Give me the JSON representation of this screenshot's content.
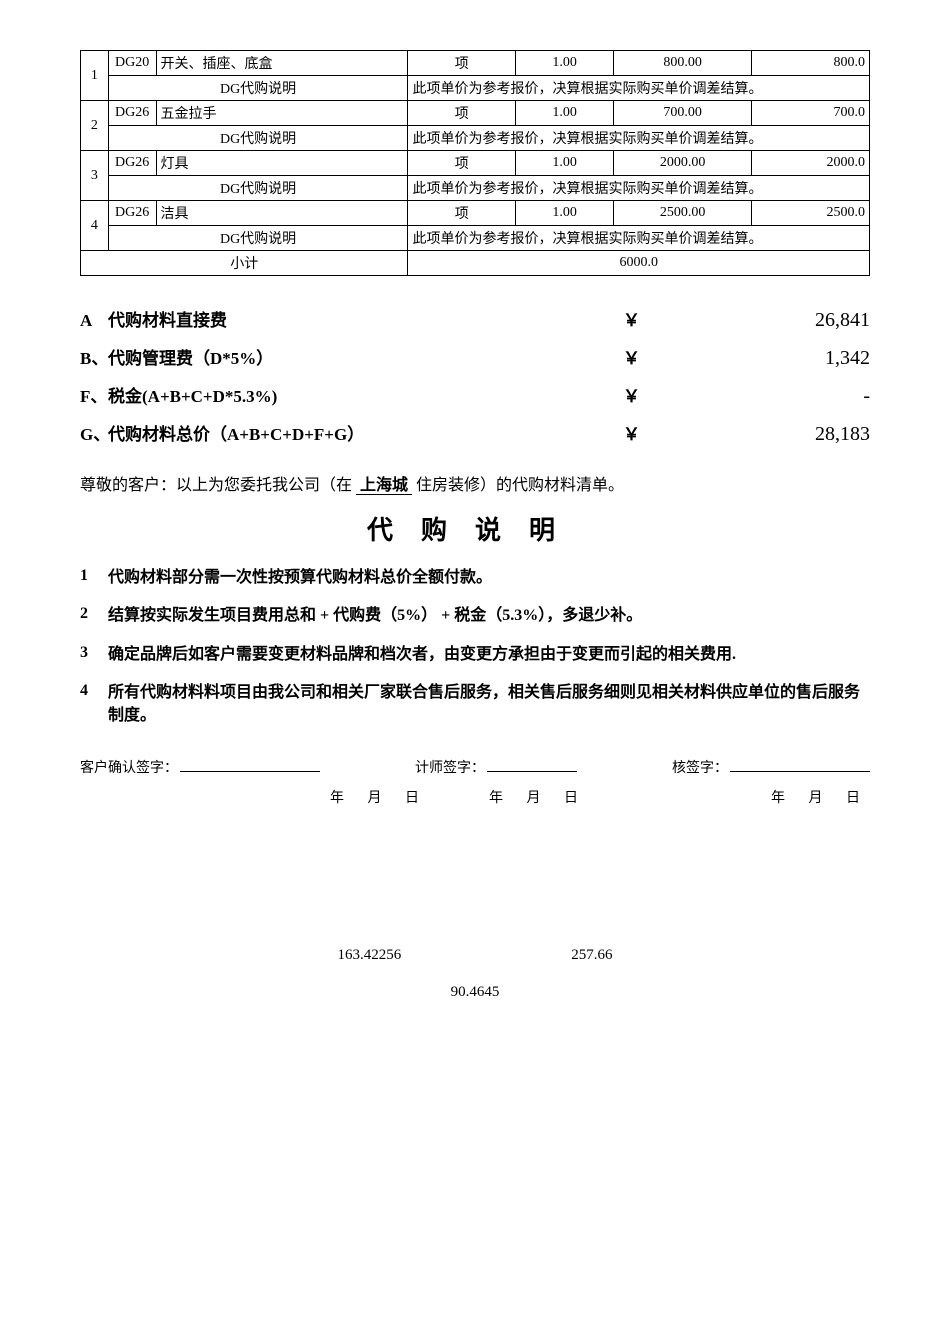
{
  "table": {
    "rows": [
      {
        "idx": "1",
        "code": "DG20",
        "name": "开关、插座、底盒",
        "unit": "项",
        "qty": "1.00",
        "price": "800.00",
        "amt": "800.0"
      },
      {
        "idx": "2",
        "code": "DG26",
        "name": "五金拉手",
        "unit": "项",
        "qty": "1.00",
        "price": "700.00",
        "amt": "700.0"
      },
      {
        "idx": "3",
        "code": "DG26",
        "name": "灯具",
        "unit": "项",
        "qty": "1.00",
        "price": "2000.00",
        "amt": "2000.0"
      },
      {
        "idx": "4",
        "code": "DG26",
        "name": "洁具",
        "unit": "项",
        "qty": "1.00",
        "price": "2500.00",
        "amt": "2500.0"
      }
    ],
    "desc_label": "DG代购说明",
    "desc_text": "此项单价为参考报价，决算根据实际购买单价调差结算。",
    "subtotal_label": "小计",
    "subtotal_value": "6000.0"
  },
  "summary": [
    {
      "letter": "A",
      "label": "代购材料直接费",
      "currency": "￥",
      "amount": "26,841"
    },
    {
      "letter": "B、",
      "label": "代购管理费（D*5%）",
      "currency": "￥",
      "amount": "1,342"
    },
    {
      "letter": "F、",
      "label": "税金(A+B+C+D*5.3%)",
      "currency": "￥",
      "amount": "-"
    },
    {
      "letter": "G、",
      "label": "代购材料总价（A+B+C+D+F+G）",
      "currency": "￥",
      "amount": "28,183"
    }
  ],
  "customer_line": {
    "prefix": "尊敬的客户：以上为您委托我公司（在",
    "project": "上海城",
    "suffix": "住房装修）的代购材料清单。"
  },
  "title": "代购说明",
  "notes": [
    {
      "num": "1",
      "text": "代购材料部分需一次性按预算代购材料总价全额付款。"
    },
    {
      "num": "2",
      "text": "结算按实际发生项目费用总和 + 代购费（5%） + 税金（5.3%），多退少补。"
    },
    {
      "num": "3",
      "text": "确定品牌后如客户需要变更材料品牌和档次者，由变更方承担由于变更而引起的相关费用."
    },
    {
      "num": "4",
      "text": "所有代购材料料项目由我公司和相关厂家联合售后服务，相关售后服务细则见相关材料供应单位的售后服务制度。"
    }
  ],
  "signatures": {
    "s1": "客户确认签字：",
    "s2": "计师签字：",
    "s3": "核签字：",
    "date": "年 月 日"
  },
  "footer": {
    "n1": "163.42256",
    "n2": "257.66",
    "n3": "90.4645"
  }
}
